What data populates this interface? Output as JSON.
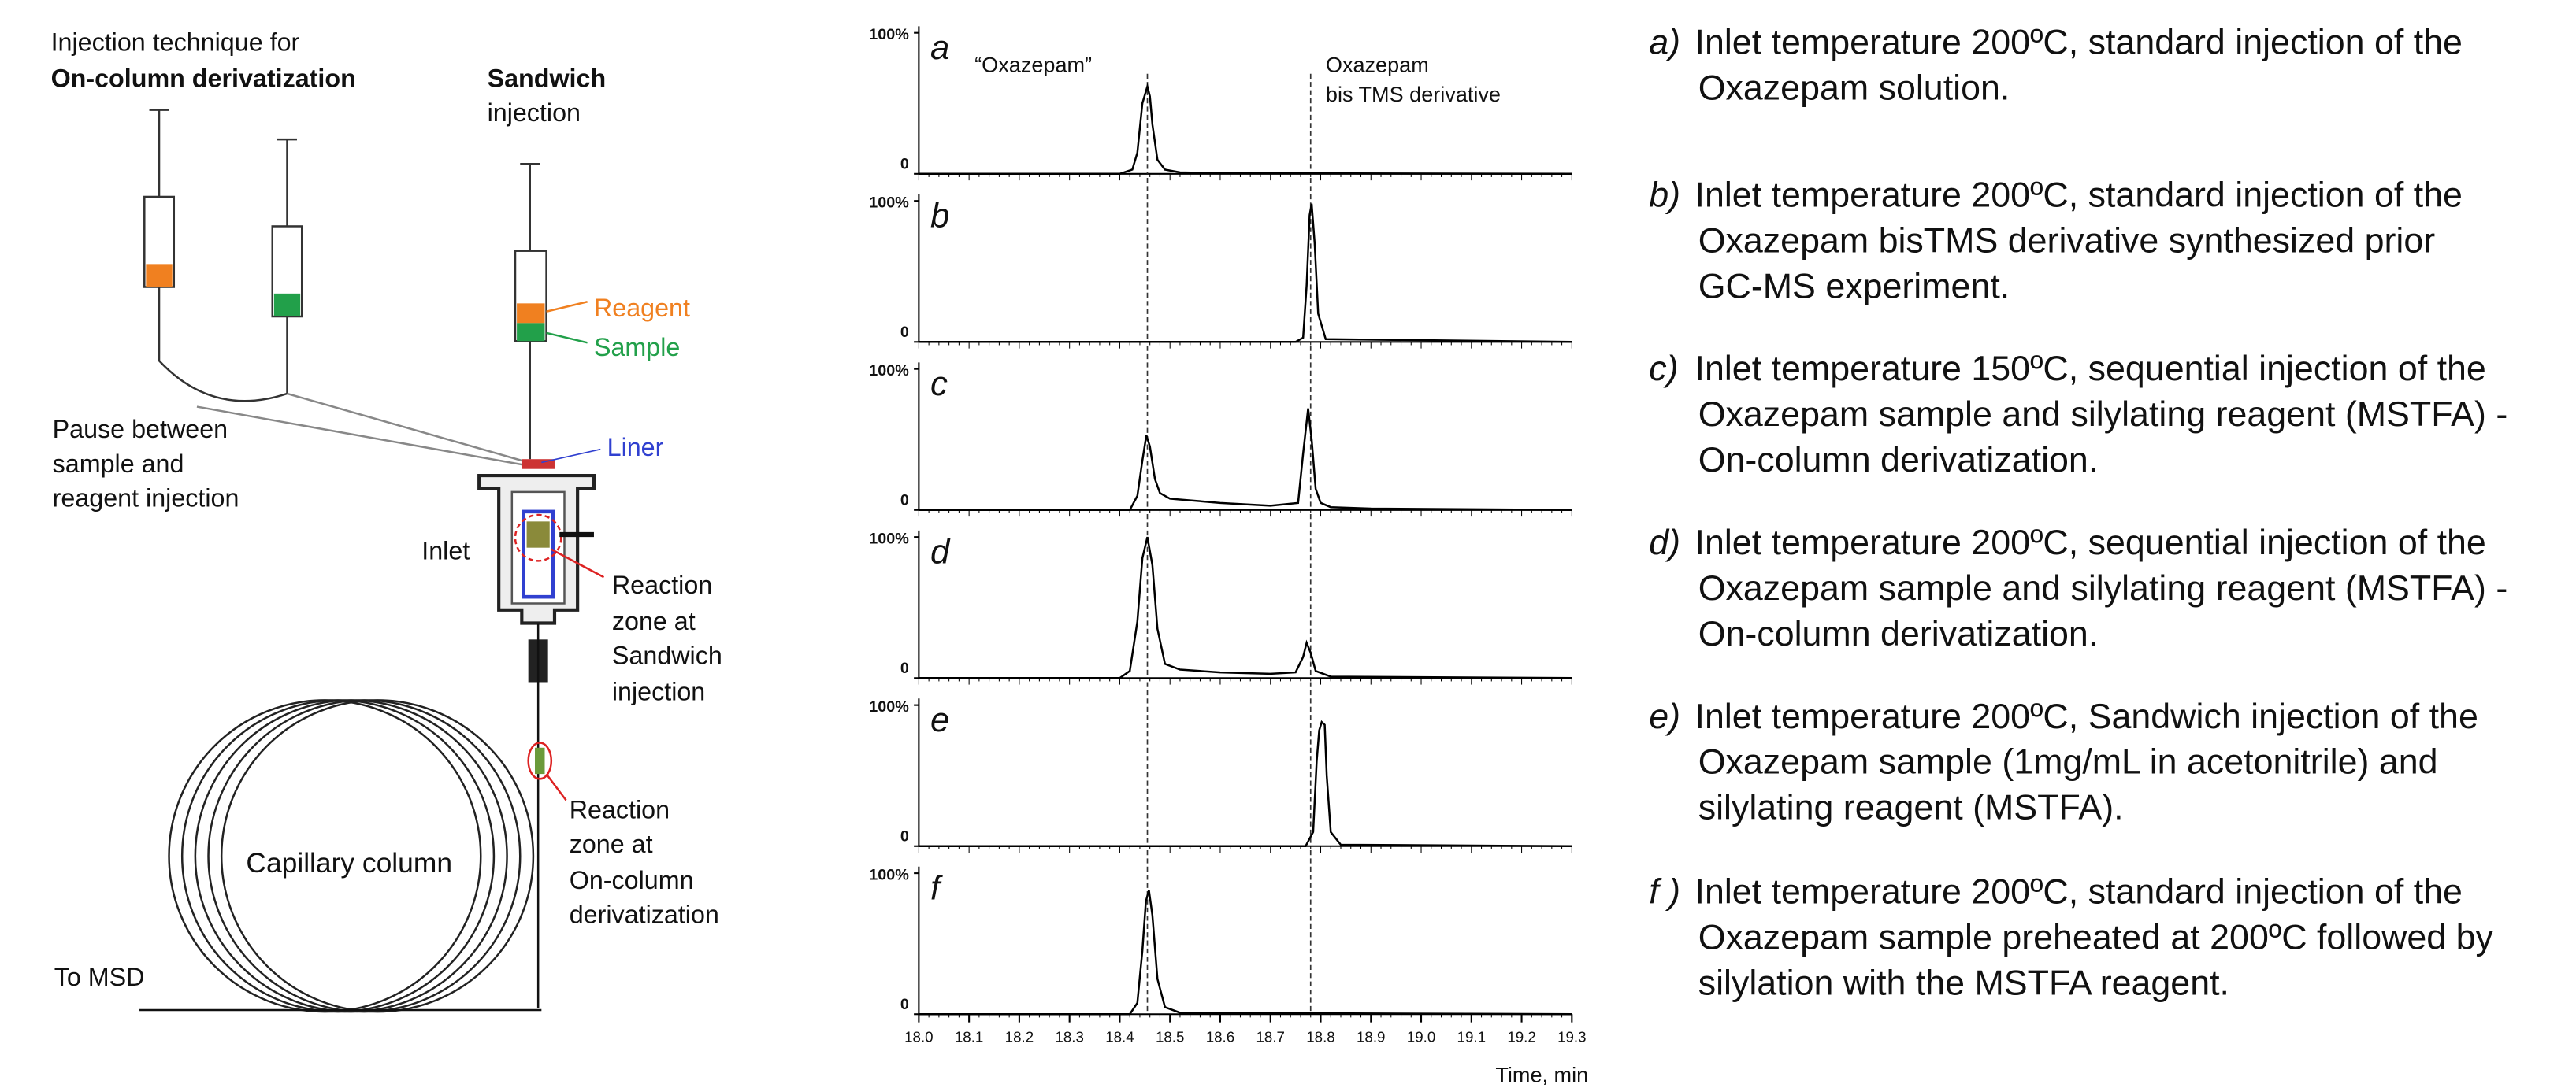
{
  "diagram": {
    "heading": [
      "Injection technique for",
      "On-column derivatization"
    ],
    "sandwich": [
      "Sandwich",
      "injection"
    ],
    "reagent": "Reagent",
    "sample": "Sample",
    "pause": [
      "Pause between",
      "sample and",
      "reagent injection"
    ],
    "liner": "Liner",
    "inlet": "Inlet",
    "zone_sandwich": [
      "Reaction",
      "zone at",
      "Sandwich",
      "injection"
    ],
    "zone_oncolumn": [
      "Reaction",
      "zone at",
      "On-column",
      "derivatization"
    ],
    "column": "Capillary column",
    "to_msd": "To MSD"
  },
  "chart_data": [
    {
      "type": "line",
      "label": "a",
      "color": "#000000",
      "xlim": [
        18,
        19.3
      ],
      "ylim": [
        0,
        100
      ],
      "yticks": [
        {
          "value": 100,
          "label": "100%"
        },
        0
      ],
      "vlines": [
        18.455,
        18.78
      ],
      "annotations": [
        "“Oxazepam”",
        "Oxazepam",
        "bis TMS derivative"
      ],
      "x": [
        18.0,
        18.4,
        18.425,
        18.435,
        18.445,
        18.455,
        18.46,
        18.465,
        18.475,
        18.49,
        18.52,
        18.6,
        19.3
      ],
      "values": [
        0,
        0,
        3,
        15,
        50,
        62,
        55,
        35,
        10,
        3,
        1,
        0.5,
        0
      ]
    },
    {
      "type": "line",
      "label": "b",
      "color": "#000000",
      "xlim": [
        18,
        19.3
      ],
      "ylim": [
        0,
        100
      ],
      "yticks": [
        {
          "value": 100,
          "label": "100%"
        },
        0
      ],
      "vlines": [
        18.455,
        18.78
      ],
      "x": [
        18.0,
        18.75,
        18.765,
        18.772,
        18.778,
        18.782,
        18.788,
        18.795,
        18.81,
        19.3
      ],
      "values": [
        0,
        0,
        3,
        40,
        90,
        98,
        70,
        20,
        2,
        0
      ]
    },
    {
      "type": "line",
      "label": "c",
      "color": "#000000",
      "xlim": [
        18,
        19.3
      ],
      "ylim": [
        0,
        100
      ],
      "yticks": [
        {
          "value": 100,
          "label": "100%"
        },
        0
      ],
      "vlines": [
        18.455,
        18.78
      ],
      "x": [
        18.0,
        18.42,
        18.435,
        18.445,
        18.453,
        18.46,
        18.47,
        18.48,
        18.5,
        18.6,
        18.7,
        18.755,
        18.765,
        18.775,
        18.782,
        18.79,
        18.8,
        18.82,
        18.9,
        19.3
      ],
      "values": [
        0,
        0,
        10,
        35,
        53,
        45,
        22,
        12,
        8,
        5,
        3,
        5,
        40,
        72,
        50,
        15,
        5,
        2,
        1,
        0
      ]
    },
    {
      "type": "line",
      "label": "d",
      "color": "#000000",
      "xlim": [
        18,
        19.3
      ],
      "ylim": [
        0,
        100
      ],
      "yticks": [
        {
          "value": 100,
          "label": "100%"
        },
        0
      ],
      "vlines": [
        18.455,
        18.78
      ],
      "x": [
        18.0,
        18.4,
        18.42,
        18.435,
        18.445,
        18.455,
        18.465,
        18.475,
        18.49,
        18.52,
        18.6,
        18.7,
        18.75,
        18.765,
        18.772,
        18.78,
        18.79,
        18.82,
        19.3
      ],
      "values": [
        0,
        0,
        5,
        40,
        85,
        100,
        80,
        35,
        10,
        6,
        4,
        3,
        4,
        15,
        25,
        18,
        5,
        1,
        0
      ]
    },
    {
      "type": "line",
      "label": "e",
      "color": "#000000",
      "xlim": [
        18,
        19.3
      ],
      "ylim": [
        0,
        100
      ],
      "yticks": [
        {
          "value": 100,
          "label": "100%"
        },
        0
      ],
      "vlines": [
        18.455,
        18.78
      ],
      "x": [
        18.0,
        18.77,
        18.785,
        18.792,
        18.797,
        18.802,
        18.808,
        18.812,
        18.82,
        18.84,
        19.3
      ],
      "values": [
        0,
        0,
        10,
        60,
        82,
        88,
        86,
        50,
        10,
        1,
        0
      ]
    },
    {
      "type": "line",
      "label": "f",
      "color": "#000000",
      "xlim": [
        18,
        19.3
      ],
      "ylim": [
        0,
        100
      ],
      "yticks": [
        {
          "value": 100,
          "label": "100%"
        },
        0
      ],
      "vlines": [
        18.455,
        18.78
      ],
      "x": [
        18.0,
        18.42,
        18.435,
        18.445,
        18.452,
        18.458,
        18.465,
        18.475,
        18.49,
        18.52,
        19.3
      ],
      "values": [
        0,
        0,
        8,
        45,
        80,
        88,
        70,
        25,
        5,
        1,
        0
      ],
      "xlabel": "Time, min",
      "xticks": [
        {
          "value": 18,
          "label": "18.0"
        },
        18.1,
        18.2,
        18.3,
        18.4,
        18.5,
        18.6,
        18.7,
        18.8,
        18.9,
        {
          "value": 19,
          "label": "19.0"
        },
        19.1,
        19.2,
        19.3
      ]
    }
  ],
  "captions": [
    {
      "label": "a)",
      "lines": [
        "Inlet temperature 200ºC, standard injection of the",
        "Oxazepam solution."
      ]
    },
    {
      "label": "b)",
      "lines": [
        "Inlet temperature 200ºC, standard injection of the",
        "Oxazepam bisTMS derivative synthesized prior",
        "GC-MS experiment."
      ]
    },
    {
      "label": "c)",
      "lines": [
        "Inlet temperature 150ºC, sequential injection of the",
        "Oxazepam sample and silylating reagent (MSTFA) -",
        "On-column derivatization."
      ]
    },
    {
      "label": "d)",
      "lines": [
        "Inlet temperature 200ºC, sequential injection of the",
        "Oxazepam sample and silylating reagent (MSTFA) -",
        "On-column derivatization."
      ]
    },
    {
      "label": "e)",
      "lines": [
        "Inlet temperature 200ºC, Sandwich injection of the",
        "Oxazepam sample (1mg/mL in acetonitrile) and",
        "silylating reagent (MSTFA)."
      ]
    },
    {
      "label": "f )",
      "lines": [
        "Inlet temperature 200ºC, standard injection of the",
        "Oxazepam sample preheated at 200ºC followed by",
        "silylation with the MSTFA reagent."
      ]
    }
  ]
}
